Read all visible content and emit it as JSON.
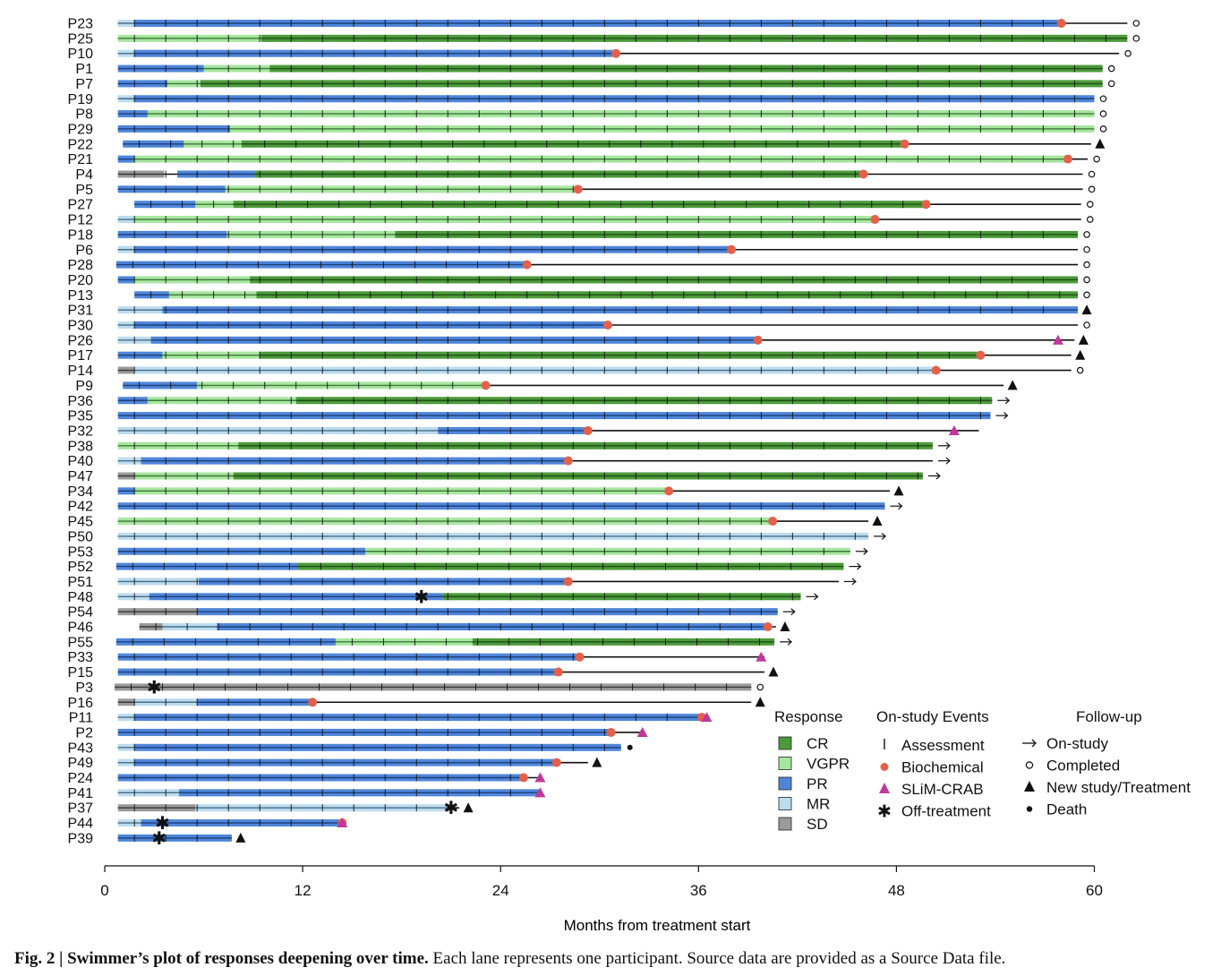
{
  "chart_data": {
    "type": "swimmer",
    "xlabel": "Months from treatment start",
    "x_ticks": [
      0,
      12,
      24,
      36,
      48,
      60
    ],
    "xlim": [
      0,
      60
    ],
    "colors": {
      "CR": "#4c9a3a",
      "VGPR": "#a8e6a0",
      "PR": "#4f86d9",
      "MR": "#bcdcef",
      "SD": "#9a9a9a",
      "biochemical": "#e5604a",
      "slim_crab": "#c0389a"
    },
    "legend": {
      "response_title": "Response",
      "response_items": [
        {
          "key": "CR",
          "label": "CR"
        },
        {
          "key": "VGPR",
          "label": "VGPR"
        },
        {
          "key": "PR",
          "label": "PR"
        },
        {
          "key": "MR",
          "label": "MR"
        },
        {
          "key": "SD",
          "label": "SD"
        }
      ],
      "events_title": "On-study Events",
      "event_items": [
        {
          "key": "assessment",
          "label": "Assessment"
        },
        {
          "key": "biochemical",
          "label": "Biochemical"
        },
        {
          "key": "slim_crab",
          "label": "SLiM-CRAB"
        },
        {
          "key": "off",
          "label": "Off-treatment"
        }
      ],
      "followup_title": "Follow-up",
      "followup_items": [
        {
          "key": "onstudy",
          "label": "On-study"
        },
        {
          "key": "completed",
          "label": "Completed"
        },
        {
          "key": "newtx",
          "label": "New study/Treatment"
        },
        {
          "key": "death",
          "label": "Death"
        }
      ]
    },
    "participants": [
      {
        "id": "P23",
        "segs": [
          [
            "MR",
            0.8,
            1.8
          ],
          [
            "PR",
            1.8,
            58
          ]
        ],
        "end": 58,
        "line": 62,
        "bio": [
          58
        ],
        "fu": "completed"
      },
      {
        "id": "P25",
        "segs": [
          [
            "VGPR",
            0.8,
            9.5
          ],
          [
            "CR",
            9.5,
            62
          ]
        ],
        "end": 62,
        "line": 62,
        "fu": "completed"
      },
      {
        "id": "P10",
        "segs": [
          [
            "MR",
            0.8,
            1.8
          ],
          [
            "PR",
            1.8,
            31
          ]
        ],
        "end": 31,
        "line": 61.5,
        "bio": [
          31
        ],
        "fu": "completed"
      },
      {
        "id": "P1",
        "segs": [
          [
            "PR",
            0.8,
            6
          ],
          [
            "VGPR",
            6,
            10
          ],
          [
            "CR",
            10,
            60.5
          ]
        ],
        "end": 60.5,
        "line": 60.5,
        "fu": "completed"
      },
      {
        "id": "P7",
        "segs": [
          [
            "PR",
            0.8,
            3.8
          ],
          [
            "VGPR",
            3.8,
            5.8
          ],
          [
            "CR",
            5.8,
            60.5
          ]
        ],
        "end": 60.5,
        "line": 60.5,
        "fu": "completed"
      },
      {
        "id": "P19",
        "segs": [
          [
            "MR",
            0.8,
            1.8
          ],
          [
            "PR",
            1.8,
            60
          ]
        ],
        "end": 60,
        "line": 60,
        "fu": "completed"
      },
      {
        "id": "P8",
        "segs": [
          [
            "PR",
            0.8,
            2.6
          ],
          [
            "VGPR",
            2.6,
            60
          ]
        ],
        "end": 60,
        "line": 60,
        "fu": "completed"
      },
      {
        "id": "P29",
        "segs": [
          [
            "PR",
            0.8,
            7.6
          ],
          [
            "VGPR",
            7.6,
            60
          ]
        ],
        "end": 60,
        "line": 60,
        "fu": "completed"
      },
      {
        "id": "P22",
        "segs": [
          [
            "PR",
            1.1,
            4.8
          ],
          [
            "VGPR",
            4.8,
            8.3
          ],
          [
            "CR",
            8.3,
            48.5
          ]
        ],
        "end": 48.5,
        "line": 59.8,
        "bio": [
          48.5
        ],
        "fu": "newtx"
      },
      {
        "id": "P21",
        "segs": [
          [
            "PR",
            0.8,
            1.8
          ],
          [
            "VGPR",
            1.8,
            58.4
          ]
        ],
        "end": 58.4,
        "line": 59.6,
        "bio": [
          58.4
        ],
        "fu": "completed"
      },
      {
        "id": "P4",
        "segs": [
          [
            "SD",
            0.8,
            3.6
          ],
          [
            "PR",
            4.4,
            9.1
          ],
          [
            "CR",
            9.1,
            46
          ]
        ],
        "end": 46,
        "line": 59.3,
        "bio": [
          46
        ],
        "fu": "completed"
      },
      {
        "id": "P5",
        "segs": [
          [
            "PR",
            0.8,
            7.3
          ],
          [
            "VGPR",
            7.3,
            28.7
          ]
        ],
        "end": 28.7,
        "line": 59.3,
        "bio": [
          28.7
        ],
        "fu": "completed"
      },
      {
        "id": "P27",
        "segs": [
          [
            "PR",
            1.8,
            5.5
          ],
          [
            "VGPR",
            5.5,
            7.8
          ],
          [
            "CR",
            7.8,
            49.8
          ]
        ],
        "end": 49.8,
        "line": 59.2,
        "bio": [
          49.8
        ],
        "fu": "completed"
      },
      {
        "id": "P12",
        "segs": [
          [
            "MR",
            0.8,
            1.8
          ],
          [
            "VGPR",
            1.8,
            46.7
          ]
        ],
        "end": 46.7,
        "line": 59.2,
        "bio": [
          46.7
        ],
        "fu": "completed"
      },
      {
        "id": "P18",
        "segs": [
          [
            "PR",
            0.8,
            7.4
          ],
          [
            "VGPR",
            7.4,
            17.6
          ],
          [
            "CR",
            17.6,
            59
          ]
        ],
        "end": 59,
        "line": 59,
        "fu": "completed"
      },
      {
        "id": "P6",
        "segs": [
          [
            "MR",
            0.8,
            1.8
          ],
          [
            "PR",
            1.8,
            38
          ]
        ],
        "end": 38,
        "line": 59,
        "bio": [
          38
        ],
        "fu": "completed"
      },
      {
        "id": "P28",
        "segs": [
          [
            "PR",
            0.7,
            25.6
          ]
        ],
        "end": 25.6,
        "line": 59,
        "bio": [
          25.6
        ],
        "fu": "completed"
      },
      {
        "id": "P20",
        "segs": [
          [
            "PR",
            0.8,
            1.8
          ],
          [
            "VGPR",
            1.8,
            8.8
          ],
          [
            "CR",
            8.8,
            59
          ]
        ],
        "end": 59,
        "line": 59,
        "fu": "completed"
      },
      {
        "id": "P13",
        "segs": [
          [
            "PR",
            1.8,
            3.9
          ],
          [
            "VGPR",
            3.9,
            9.2
          ],
          [
            "CR",
            9.2,
            59
          ]
        ],
        "end": 59,
        "line": 59,
        "fu": "completed"
      },
      {
        "id": "P31",
        "segs": [
          [
            "MR",
            0.8,
            3.5
          ],
          [
            "PR",
            3.5,
            59
          ]
        ],
        "end": 59,
        "line": 59,
        "fu": "newtx"
      },
      {
        "id": "P30",
        "segs": [
          [
            "MR",
            0.8,
            1.8
          ],
          [
            "PR",
            1.8,
            30.5
          ]
        ],
        "end": 30.5,
        "line": 59,
        "bio": [
          30.5
        ],
        "fu": "completed"
      },
      {
        "id": "P26",
        "segs": [
          [
            "MR",
            0.8,
            2.8
          ],
          [
            "PR",
            2.8,
            39.6
          ]
        ],
        "end": 39.6,
        "line": 58.8,
        "bio": [
          39.6
        ],
        "slim": [
          57.8
        ],
        "fu": "newtx"
      },
      {
        "id": "P17",
        "segs": [
          [
            "PR",
            0.8,
            3.5
          ],
          [
            "VGPR",
            3.5,
            9.4
          ],
          [
            "CR",
            9.4,
            53.1
          ]
        ],
        "end": 53.1,
        "line": 58.6,
        "bio": [
          53.1
        ],
        "fu": "newtx"
      },
      {
        "id": "P14",
        "segs": [
          [
            "SD",
            0.8,
            1.8
          ],
          [
            "MR",
            1.8,
            50.4
          ]
        ],
        "end": 50.4,
        "line": 58.6,
        "bio": [
          50.4
        ],
        "fu": "completed"
      },
      {
        "id": "P9",
        "segs": [
          [
            "PR",
            1.1,
            5.6
          ],
          [
            "VGPR",
            5.6,
            23.1
          ]
        ],
        "end": 23.1,
        "line": 54.5,
        "bio": [
          23.1
        ],
        "fu": "newtx"
      },
      {
        "id": "P36",
        "segs": [
          [
            "PR",
            0.8,
            2.6
          ],
          [
            "VGPR",
            2.6,
            11.6
          ],
          [
            "CR",
            11.6,
            53.8
          ]
        ],
        "end": 53.8,
        "line": 53.8,
        "fu": "onstudy"
      },
      {
        "id": "P35",
        "segs": [
          [
            "PR",
            0.8,
            53.7
          ]
        ],
        "end": 53.7,
        "line": 53.7,
        "fu": "onstudy"
      },
      {
        "id": "P32",
        "segs": [
          [
            "MR",
            0.8,
            20.2
          ],
          [
            "PR",
            20.2,
            29.3
          ]
        ],
        "end": 29.3,
        "line": 53,
        "bio": [
          29.3
        ],
        "slim": [
          51.5
        ],
        "fu": "none"
      },
      {
        "id": "P38",
        "segs": [
          [
            "VGPR",
            0.8,
            8.1
          ],
          [
            "CR",
            8.1,
            50.2
          ]
        ],
        "end": 50.2,
        "line": 50.2,
        "fu": "onstudy"
      },
      {
        "id": "P40",
        "segs": [
          [
            "MR",
            0.8,
            2.2
          ],
          [
            "PR",
            2.2,
            28.1
          ]
        ],
        "end": 28.1,
        "line": 50.2,
        "bio": [
          28.1
        ],
        "fu": "onstudy"
      },
      {
        "id": "P47",
        "segs": [
          [
            "SD",
            0.8,
            1.8
          ],
          [
            "VGPR",
            1.8,
            7.8
          ],
          [
            "CR",
            7.8,
            49.6
          ]
        ],
        "end": 49.6,
        "line": 49.6,
        "fu": "onstudy"
      },
      {
        "id": "P34",
        "segs": [
          [
            "PR",
            0.8,
            1.8
          ],
          [
            "VGPR",
            1.8,
            34.2
          ]
        ],
        "end": 34.2,
        "line": 47.6,
        "bio": [
          34.2
        ],
        "fu": "newtx"
      },
      {
        "id": "P42",
        "segs": [
          [
            "PR",
            0.8,
            47.3
          ]
        ],
        "end": 47.3,
        "line": 47.3,
        "fu": "onstudy"
      },
      {
        "id": "P45",
        "segs": [
          [
            "VGPR",
            0.8,
            40.5
          ]
        ],
        "end": 40.5,
        "line": 46.3,
        "bio": [
          40.5
        ],
        "fu": "newtx"
      },
      {
        "id": "P50",
        "segs": [
          [
            "MR",
            0.8,
            46.3
          ]
        ],
        "end": 46.3,
        "line": 46.3,
        "fu": "onstudy"
      },
      {
        "id": "P53",
        "segs": [
          [
            "PR",
            0.8,
            15.8
          ],
          [
            "VGPR",
            15.8,
            45.2
          ]
        ],
        "end": 45.2,
        "line": 45.2,
        "fu": "onstudy"
      },
      {
        "id": "P52",
        "segs": [
          [
            "PR",
            0.7,
            11.7
          ],
          [
            "CR",
            11.7,
            44.8
          ]
        ],
        "end": 44.8,
        "line": 44.8,
        "fu": "onstudy"
      },
      {
        "id": "P51",
        "segs": [
          [
            "MR",
            0.8,
            5.7
          ],
          [
            "PR",
            5.7,
            28.1
          ]
        ],
        "end": 28.1,
        "line": 44.5,
        "bio": [
          28.1
        ],
        "fu": "onstudy"
      },
      {
        "id": "P48",
        "segs": [
          [
            "MR",
            0.8,
            2.7
          ],
          [
            "PR",
            2.7,
            20.5
          ],
          [
            "CR",
            20.5,
            42.2
          ]
        ],
        "end": 42.2,
        "line": 42.2,
        "off": [
          19.2
        ],
        "fu": "onstudy"
      },
      {
        "id": "P54",
        "segs": [
          [
            "SD",
            0.8,
            5.6
          ],
          [
            "PR",
            5.6,
            40.8
          ]
        ],
        "end": 40.8,
        "line": 40.8,
        "fu": "onstudy"
      },
      {
        "id": "P46",
        "segs": [
          [
            "SD",
            2.1,
            3.5
          ],
          [
            "MR",
            3.5,
            6.8
          ],
          [
            "PR",
            6.8,
            40.2
          ]
        ],
        "end": 40.2,
        "line": 40.7,
        "bio": [
          40.2
        ],
        "fu": "newtx"
      },
      {
        "id": "P55",
        "segs": [
          [
            "PR",
            0.7,
            14
          ],
          [
            "VGPR",
            14,
            22.3
          ],
          [
            "CR",
            22.3,
            40.6
          ]
        ],
        "end": 40.6,
        "line": 40.6,
        "fu": "onstudy"
      },
      {
        "id": "P33",
        "segs": [
          [
            "PR",
            0.8,
            28.8
          ]
        ],
        "end": 28.8,
        "line": 40,
        "bio": [
          28.8
        ],
        "slim": [
          39.8
        ],
        "fu": "none"
      },
      {
        "id": "P15",
        "segs": [
          [
            "PR",
            0.8,
            27.5
          ]
        ],
        "end": 27.5,
        "line": 40,
        "bio": [
          27.5
        ],
        "fu": "newtx"
      },
      {
        "id": "P3",
        "segs": [
          [
            "SD",
            0.6,
            39.2
          ]
        ],
        "end": 39.2,
        "line": 39.2,
        "off": [
          3
        ],
        "fu": "completed"
      },
      {
        "id": "P16",
        "segs": [
          [
            "SD",
            0.8,
            1.8
          ],
          [
            "MR",
            1.8,
            5.6
          ],
          [
            "PR",
            5.6,
            12.6
          ]
        ],
        "end": 12.6,
        "line": 39.2,
        "bio": [
          12.6
        ],
        "fu": "newtx"
      },
      {
        "id": "P11",
        "segs": [
          [
            "MR",
            0.8,
            1.8
          ],
          [
            "PR",
            1.8,
            36.2
          ]
        ],
        "end": 36.2,
        "line": 36.2,
        "bio": [
          36.2
        ],
        "slim": [
          36.5
        ],
        "fu": "none"
      },
      {
        "id": "P2",
        "segs": [
          [
            "PR",
            0.8,
            30.7
          ]
        ],
        "end": 30.7,
        "line": 32.5,
        "bio": [
          30.7
        ],
        "slim": [
          32.6
        ],
        "fu": "none"
      },
      {
        "id": "P43",
        "segs": [
          [
            "MR",
            0.8,
            1.8
          ],
          [
            "PR",
            1.8,
            31.3
          ]
        ],
        "end": 31.3,
        "line": 31.3,
        "fu": "death"
      },
      {
        "id": "P49",
        "segs": [
          [
            "MR",
            0.8,
            1.8
          ],
          [
            "PR",
            1.8,
            27.4
          ]
        ],
        "end": 27.4,
        "line": 29.3,
        "bio": [
          27.4
        ],
        "fu": "newtx"
      },
      {
        "id": "P24",
        "segs": [
          [
            "PR",
            0.8,
            25.4
          ]
        ],
        "end": 25.4,
        "line": 26.4,
        "bio": [
          25.4
        ],
        "slim": [
          26.4
        ],
        "fu": "none"
      },
      {
        "id": "P41",
        "segs": [
          [
            "MR",
            0.8,
            4.5
          ],
          [
            "PR",
            4.5,
            26.4
          ]
        ],
        "end": 26.4,
        "line": 26.4,
        "slim": [
          26.4
        ],
        "fu": "none"
      },
      {
        "id": "P37",
        "segs": [
          [
            "SD",
            0.8,
            5.5
          ],
          [
            "MR",
            5.5,
            21.1
          ]
        ],
        "end": 21.1,
        "line": 21.5,
        "off": [
          21
        ],
        "fu": "newtx"
      },
      {
        "id": "P44",
        "segs": [
          [
            "MR",
            0.8,
            2.2
          ],
          [
            "PR",
            2.2,
            14.4
          ]
        ],
        "end": 14.4,
        "line": 14.4,
        "off": [
          3.5
        ],
        "bio": [
          14.4
        ],
        "slim": [
          14.4
        ],
        "fu": "none"
      },
      {
        "id": "P39",
        "segs": [
          [
            "PR",
            0.8,
            7.7
          ]
        ],
        "end": 7.7,
        "line": 7.7,
        "off": [
          3.3
        ],
        "fu": "newtx"
      }
    ]
  },
  "caption": {
    "bold": "Fig. 2 | Swimmer’s plot of responses deepening over time.",
    "text": " Each lane represents one participant. Source data are provided as a Source Data file."
  }
}
